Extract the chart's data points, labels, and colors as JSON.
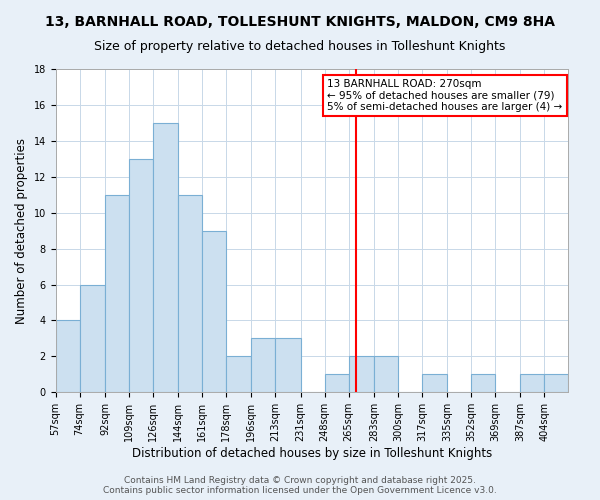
{
  "title": "13, BARNHALL ROAD, TOLLESHUNT KNIGHTS, MALDON, CM9 8HA",
  "subtitle": "Size of property relative to detached houses in Tolleshunt Knights",
  "xlabel": "Distribution of detached houses by size in Tolleshunt Knights",
  "ylabel": "Number of detached properties",
  "bin_labels": [
    "57sqm",
    "74sqm",
    "92sqm",
    "109sqm",
    "126sqm",
    "144sqm",
    "161sqm",
    "178sqm",
    "196sqm",
    "213sqm",
    "231sqm",
    "248sqm",
    "265sqm",
    "283sqm",
    "300sqm",
    "317sqm",
    "335sqm",
    "352sqm",
    "369sqm",
    "387sqm",
    "404sqm"
  ],
  "bin_edges": [
    57,
    74,
    92,
    109,
    126,
    144,
    161,
    178,
    196,
    213,
    231,
    248,
    265,
    283,
    300,
    317,
    335,
    352,
    369,
    387,
    404,
    421
  ],
  "bar_heights": [
    4,
    6,
    11,
    13,
    15,
    11,
    9,
    2,
    3,
    3,
    0,
    1,
    2,
    2,
    0,
    1,
    0,
    1,
    0,
    1,
    1
  ],
  "bar_color": "#cce0f0",
  "bar_edge_color": "#7aafd4",
  "grid_color": "#c8d8e8",
  "fig_background_color": "#e8f0f8",
  "ax_background_color": "#ffffff",
  "vline_x": 270,
  "vline_color": "red",
  "annotation_text": "13 BARNHALL ROAD: 270sqm\n← 95% of detached houses are smaller (79)\n5% of semi-detached houses are larger (4) →",
  "annotation_box_color": "white",
  "annotation_box_edge": "red",
  "ylim": [
    0,
    18
  ],
  "yticks": [
    0,
    2,
    4,
    6,
    8,
    10,
    12,
    14,
    16,
    18
  ],
  "footer1": "Contains HM Land Registry data © Crown copyright and database right 2025.",
  "footer2": "Contains public sector information licensed under the Open Government Licence v3.0.",
  "title_fontsize": 10,
  "subtitle_fontsize": 9,
  "xlabel_fontsize": 8.5,
  "ylabel_fontsize": 8.5,
  "tick_fontsize": 7,
  "footer_fontsize": 6.5,
  "annotation_fontsize": 7.5
}
